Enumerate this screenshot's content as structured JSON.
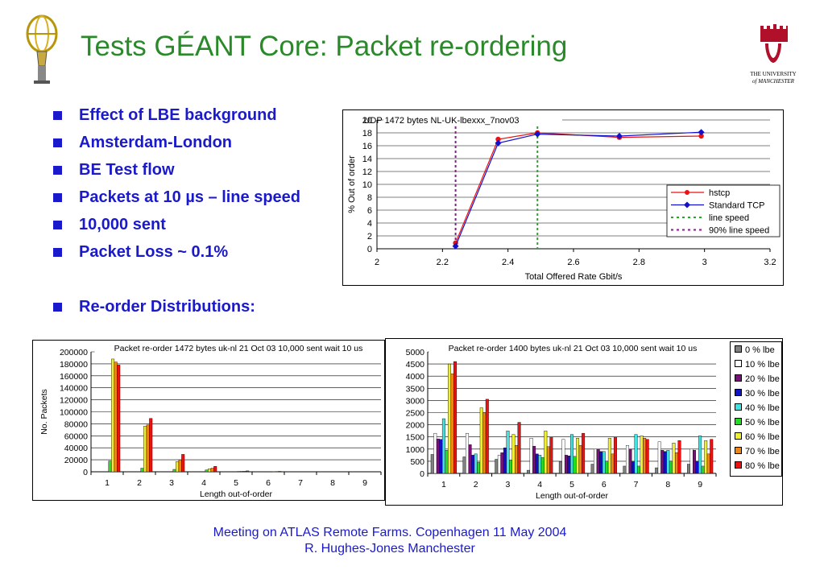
{
  "slide": {
    "title": "Tests GÉANT Core: Packet re-ordering",
    "bullets": [
      "Effect of LBE background",
      "Amsterdam-London",
      "BE Test flow",
      "Packets at 10 µs – line speed",
      "10,000 sent",
      "Packet Loss ~ 0.1%"
    ],
    "bullet2": "Re-order Distributions:",
    "university": [
      "THE UNIVERSITY",
      "of MANCHESTER"
    ],
    "footer_line1": "Meeting on ATLAS Remote Farms. Copenhagen 11 May 2004",
    "footer_line2": "R. Hughes-Jones  Manchester"
  },
  "colors": {
    "title": "#2a8a2a",
    "text": "#1a1acc",
    "manchester_red": "#b0102a"
  },
  "chart_data": [
    {
      "type": "line",
      "title": "UDP 1472 bytes NL-UK-lbexxx_7nov03",
      "xlabel": "Total Offered Rate Gbit/s",
      "ylabel": "% Out of order",
      "xlim": [
        2,
        3.2
      ],
      "ylim": [
        0,
        20
      ],
      "xticks": [
        "2",
        "2.2",
        "2.4",
        "2.6",
        "2.8",
        "3",
        "3.2"
      ],
      "yticks": [
        "0",
        "2",
        "4",
        "6",
        "8",
        "10",
        "12",
        "14",
        "16",
        "18",
        "20"
      ],
      "grid": true,
      "legend_position": "right",
      "series": [
        {
          "name": "hstcp",
          "color": "#ee1111",
          "marker": "circle",
          "x": [
            2.24,
            2.37,
            2.49,
            2.74,
            2.99
          ],
          "y": [
            0.9,
            17.0,
            18.0,
            17.3,
            17.5
          ]
        },
        {
          "name": "Standard TCP",
          "color": "#1111cc",
          "marker": "diamond",
          "x": [
            2.24,
            2.37,
            2.49,
            2.74,
            2.99
          ],
          "y": [
            0.4,
            16.4,
            17.8,
            17.5,
            18.1
          ]
        }
      ],
      "vlines": [
        {
          "name": "line speed",
          "x": 2.49,
          "color": "#22aa22"
        },
        {
          "name": "90% line speed",
          "x": 2.24,
          "color": "#991199"
        }
      ]
    },
    {
      "type": "bar",
      "title": "Packet re-order 1472 bytes uk-nl 21 Oct 03 10,000 sent wait 10 us",
      "xlabel": "Length out-of-order",
      "ylabel": "No. Packets",
      "ylim": [
        0,
        200000
      ],
      "yticks": [
        "0",
        "20000",
        "40000",
        "60000",
        "80000",
        "100000",
        "120000",
        "140000",
        "160000",
        "180000",
        "200000"
      ],
      "categories": [
        "1",
        "2",
        "3",
        "4",
        "5",
        "6",
        "7",
        "8",
        "9"
      ],
      "grid": true,
      "series": [
        {
          "name": "0 % lbe",
          "values": [
            0,
            0,
            0,
            0,
            0,
            0,
            0,
            0,
            0
          ]
        },
        {
          "name": "10 % lbe",
          "values": [
            0,
            0,
            0,
            0,
            0,
            0,
            0,
            0,
            0
          ]
        },
        {
          "name": "20 % lbe",
          "values": [
            0,
            0,
            0,
            0,
            0,
            0,
            0,
            0,
            0
          ]
        },
        {
          "name": "30 % lbe",
          "values": [
            0,
            0,
            0,
            0,
            0,
            0,
            0,
            0,
            0
          ]
        },
        {
          "name": "40 % lbe",
          "values": [
            0,
            0,
            0,
            0,
            0,
            0,
            0,
            0,
            0
          ]
        },
        {
          "name": "50 % lbe",
          "values": [
            18000,
            6000,
            4000,
            3000,
            600,
            200,
            0,
            0,
            0
          ]
        },
        {
          "name": "60 % lbe",
          "values": [
            188000,
            76000,
            17000,
            5000,
            900,
            400,
            0,
            0,
            0
          ]
        },
        {
          "name": "70 % lbe",
          "values": [
            183000,
            78000,
            20000,
            6000,
            1000,
            500,
            0,
            0,
            0
          ]
        },
        {
          "name": "80 % lbe",
          "values": [
            178000,
            89000,
            29000,
            9000,
            1500,
            700,
            0,
            0,
            0
          ]
        }
      ]
    },
    {
      "type": "bar",
      "title": "Packet re-order 1400 bytes uk-nl 21 Oct 03 10,000 sent wait 10 us",
      "xlabel": "Length out-of-order",
      "ylabel": "No. Packets",
      "ylim": [
        0,
        5000
      ],
      "yticks": [
        "0",
        "500",
        "1000",
        "1500",
        "2000",
        "2500",
        "3000",
        "3500",
        "4000",
        "4500",
        "5000"
      ],
      "categories": [
        "1",
        "2",
        "3",
        "4",
        "5",
        "6",
        "7",
        "8",
        "9"
      ],
      "grid": true,
      "legend_position": "right",
      "series": [
        {
          "name": "0 % lbe",
          "color": "#808080",
          "values": [
            780,
            680,
            580,
            130,
            480,
            380,
            300,
            230,
            380
          ]
        },
        {
          "name": "10 % lbe",
          "color": "#ffffff",
          "values": [
            1650,
            1650,
            750,
            1450,
            1400,
            1000,
            1150,
            1300,
            1000
          ]
        },
        {
          "name": "20 % lbe",
          "color": "#771177",
          "values": [
            1420,
            1180,
            850,
            1120,
            750,
            1000,
            1000,
            950,
            950
          ]
        },
        {
          "name": "30 % lbe",
          "color": "#1111cc",
          "values": [
            1400,
            750,
            1050,
            800,
            720,
            900,
            480,
            900,
            500
          ]
        },
        {
          "name": "40 % lbe",
          "color": "#44e0e0",
          "values": [
            2250,
            800,
            1750,
            750,
            1600,
            900,
            1600,
            950,
            1550
          ]
        },
        {
          "name": "50 % lbe",
          "color": "#22dd22",
          "values": [
            950,
            450,
            550,
            650,
            700,
            500,
            300,
            500,
            300
          ]
        },
        {
          "name": "60 % lbe",
          "color": "#eeee33",
          "values": [
            4500,
            2700,
            1600,
            1750,
            1450,
            1450,
            1550,
            1250,
            1350
          ]
        },
        {
          "name": "70 % lbe",
          "color": "#ee8811",
          "values": [
            4100,
            2500,
            1150,
            1100,
            1150,
            800,
            1450,
            850,
            800
          ]
        },
        {
          "name": "80 % lbe",
          "color": "#ee1111",
          "values": [
            4600,
            3050,
            2100,
            1500,
            1650,
            1500,
            1400,
            1350,
            1400
          ]
        }
      ]
    }
  ]
}
